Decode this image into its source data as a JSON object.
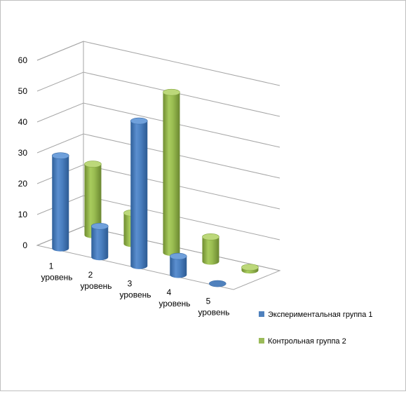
{
  "chart_data": {
    "type": "bar",
    "style": "3d-cylinder",
    "categories": [
      "1\nуровень",
      "2\nуровень",
      "3\nуровень",
      "4\nуровень",
      "5\nуровень"
    ],
    "series": [
      {
        "name": "Экспериментальная группа 1",
        "color": "#4f81bd",
        "values": [
          30,
          10,
          47,
          6,
          0
        ]
      },
      {
        "name": "Контрольная группа 2",
        "color": "#9bbb59",
        "values": [
          23,
          10,
          52,
          8,
          1
        ]
      }
    ],
    "yticks": [
      0,
      10,
      20,
      30,
      40,
      50,
      60
    ],
    "ylim": [
      0,
      60
    ],
    "grid": true,
    "legend_position": "right"
  }
}
